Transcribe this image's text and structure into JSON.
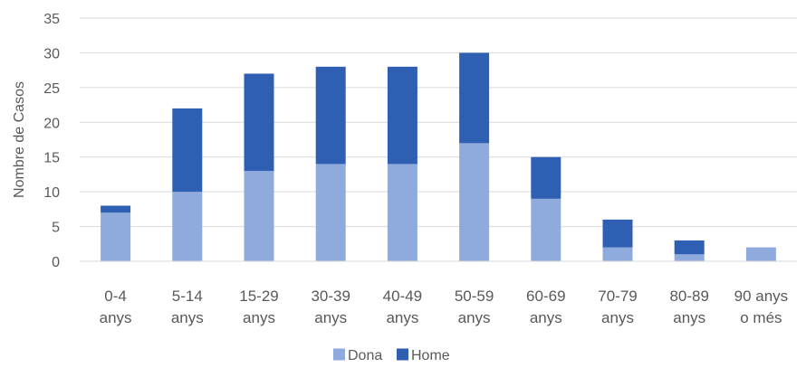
{
  "chart_data": {
    "type": "bar",
    "stacked": true,
    "categories": [
      [
        "0-4",
        "anys"
      ],
      [
        "5-14",
        "anys"
      ],
      [
        "15-29",
        "anys"
      ],
      [
        "30-39",
        "anys"
      ],
      [
        "40-49",
        "anys"
      ],
      [
        "50-59",
        "anys"
      ],
      [
        "60-69",
        "anys"
      ],
      [
        "70-79",
        "anys"
      ],
      [
        "80-89",
        "anys"
      ],
      [
        "90 anys",
        "o més"
      ]
    ],
    "series": [
      {
        "name": "Dona",
        "color": "#8faadc",
        "values": [
          7,
          10,
          13,
          14,
          14,
          17,
          9,
          2,
          1,
          2
        ]
      },
      {
        "name": "Home",
        "color": "#2f5fb3",
        "values": [
          1,
          12,
          14,
          14,
          14,
          13,
          6,
          4,
          2,
          0
        ]
      }
    ],
    "ylabel": "Nombre de Casos",
    "xlabel": "",
    "title": "",
    "ylim": [
      0,
      35
    ],
    "yticks": [
      0,
      5,
      10,
      15,
      20,
      25,
      30,
      35
    ],
    "grid": true,
    "legend_position": "bottom"
  }
}
